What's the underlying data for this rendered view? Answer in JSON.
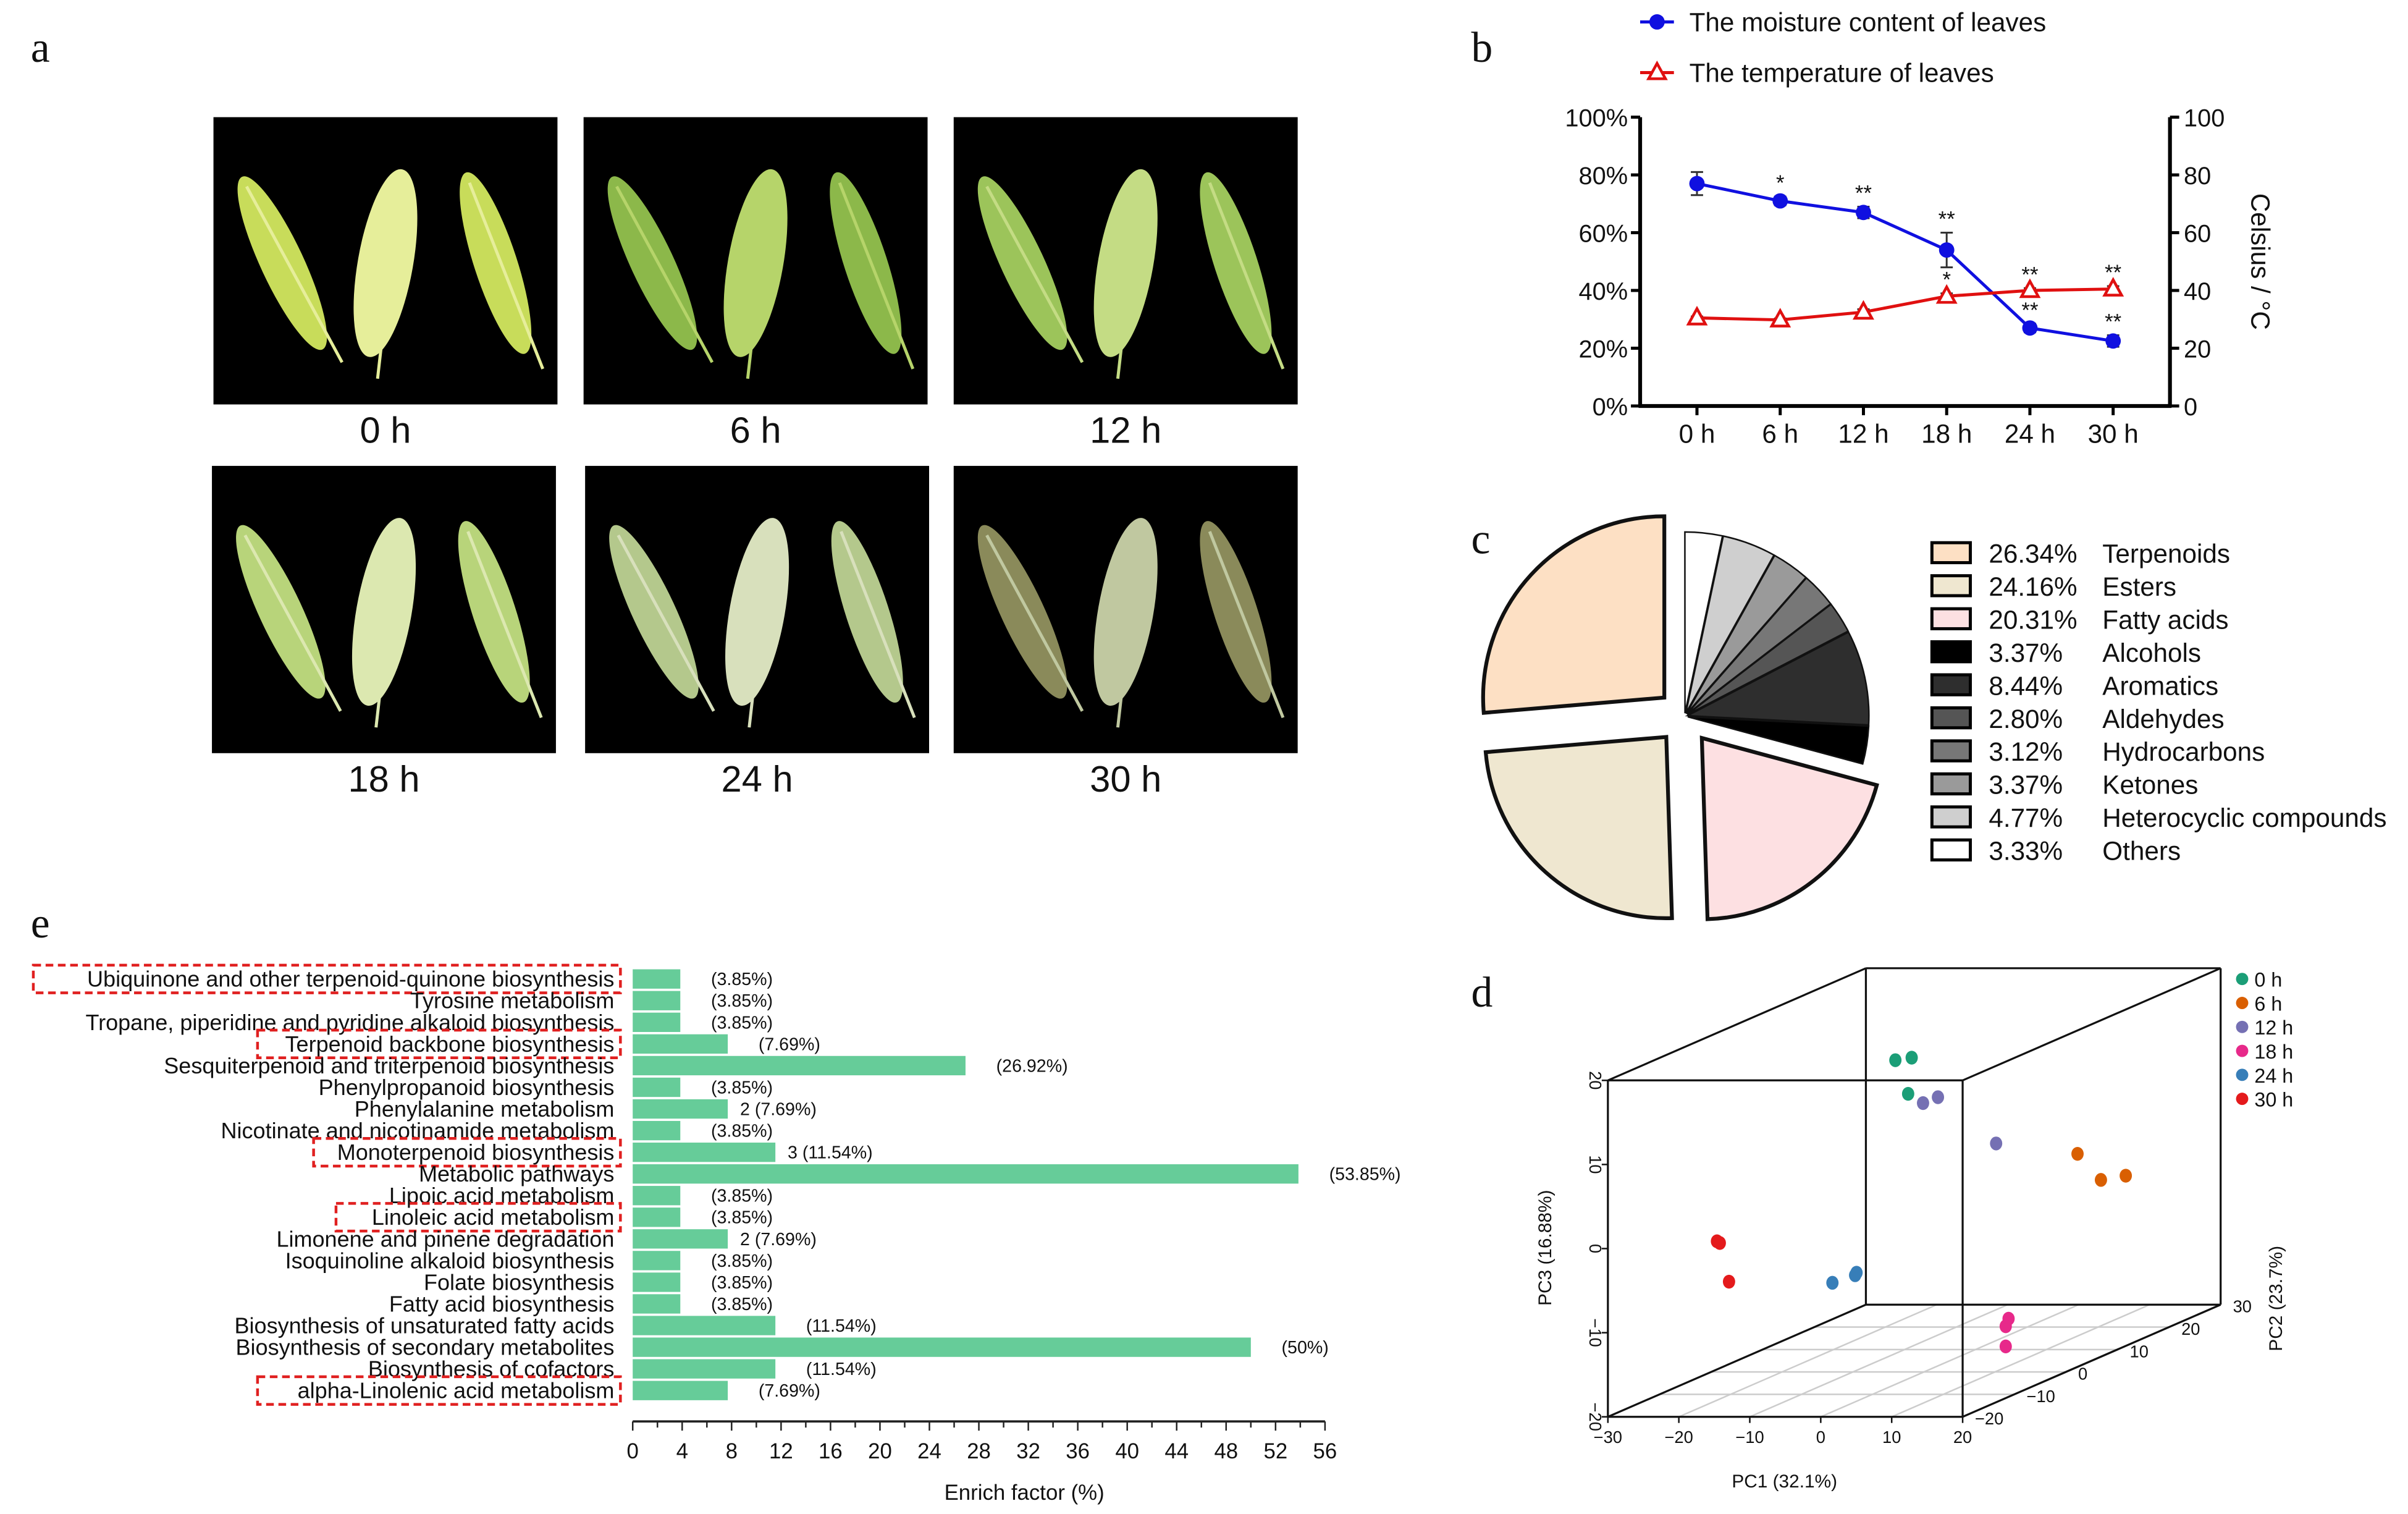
{
  "panel_labels": {
    "a": "a",
    "b": "b",
    "c": "c",
    "d": "d",
    "e": "e"
  },
  "panel_a": {
    "photos": [
      {
        "label": "0 h"
      },
      {
        "label": "6 h"
      },
      {
        "label": "12 h"
      },
      {
        "label": "18 h"
      },
      {
        "label": "24 h"
      },
      {
        "label": "30 h"
      }
    ]
  },
  "chart_data": [
    {
      "type": "line",
      "panel": "b",
      "categories": [
        "0 h",
        "6 h",
        "12 h",
        "18 h",
        "24 h",
        "30 h"
      ],
      "left_axis": {
        "ticks": [
          "0%",
          "20%",
          "40%",
          "60%",
          "80%",
          "100%"
        ],
        "ylim": [
          0,
          100
        ]
      },
      "right_axis": {
        "label": "Celsius / °C",
        "ticks": [
          "0",
          "20",
          "40",
          "60",
          "80",
          "100"
        ],
        "ylim": [
          0,
          100
        ]
      },
      "legend_placement": "top",
      "series": [
        {
          "name": "The moisture content of leaves",
          "axis": "left",
          "color": "#1010e0",
          "marker": "circle",
          "values": [
            77,
            71,
            67,
            54,
            27,
            22.5
          ],
          "error": [
            4,
            1.5,
            2,
            6,
            1.5,
            2
          ],
          "significance": [
            "",
            "*",
            "**",
            "**",
            "**",
            "**"
          ]
        },
        {
          "name": "The temperature of leaves",
          "axis": "right",
          "color": "#e01010",
          "marker": "triangle-open",
          "values": [
            30.5,
            29.8,
            32.5,
            38,
            40,
            40.5
          ],
          "error": [
            0.5,
            0.5,
            1,
            1,
            0.8,
            1
          ],
          "significance": [
            "",
            "",
            "",
            "*",
            "**",
            "**"
          ]
        }
      ]
    },
    {
      "type": "pie",
      "panel": "c",
      "legend_placement": "right",
      "slices": [
        {
          "percent_label": "26.34%",
          "name": "Terpenoids",
          "value": 26.34,
          "color": "#fde0c4",
          "exploded": true
        },
        {
          "percent_label": "24.16%",
          "name": "Esters",
          "value": 24.16,
          "color": "#efe7d0",
          "exploded": true
        },
        {
          "percent_label": "20.31%",
          "name": "Fatty acids",
          "value": 20.31,
          "color": "#fde0e2",
          "exploded": true
        },
        {
          "percent_label": "3.37%",
          "name": "Alcohols",
          "value": 3.37,
          "color": "#000000"
        },
        {
          "percent_label": "8.44%",
          "name": "Aromatics",
          "value": 8.44,
          "color": "#2e2e2e"
        },
        {
          "percent_label": "2.80%",
          "name": "Aldehydes",
          "value": 2.8,
          "color": "#555555"
        },
        {
          "percent_label": "3.12%",
          "name": "Hydrocarbons",
          "value": 3.12,
          "color": "#777777"
        },
        {
          "percent_label": "3.37%",
          "name": "Ketones",
          "value": 3.37,
          "color": "#9a9a9a"
        },
        {
          "percent_label": "4.77%",
          "name": "Heterocyclic compounds",
          "value": 4.77,
          "color": "#cfcfcf"
        },
        {
          "percent_label": "3.33%",
          "name": "Others",
          "value": 3.33,
          "color": "#ffffff"
        }
      ]
    },
    {
      "type": "scatter3d",
      "panel": "d",
      "xlabel": "PC1 (32.1%)",
      "ylabel": "PC2 (23.7%)",
      "zlabel": "PC3 (16.88%)",
      "xlim": [
        -30,
        20
      ],
      "ylim": [
        -20,
        30
      ],
      "zlim": [
        -20,
        20
      ],
      "x_ticks": [
        "−30",
        "−20",
        "−10",
        "0",
        "10",
        "20"
      ],
      "y_ticks": [
        "−20",
        "−10",
        "0",
        "10",
        "20",
        "30"
      ],
      "z_ticks": [
        "−20",
        "−10",
        "0",
        "10",
        "20"
      ],
      "legend_placement": "top-right",
      "groups": [
        {
          "name": "0 h",
          "color": "#1b9e77",
          "points": [
            [
              -11.3,
              10,
              14.4
            ],
            [
              -9.0,
              10,
              14.7
            ],
            [
              -9.5,
              10,
              10.4
            ]
          ]
        },
        {
          "name": "6 h",
          "color": "#d95f02",
          "points": [
            [
              7.1,
              20,
              0.6
            ],
            [
              10.4,
              20,
              -2.5
            ],
            [
              13.9,
              20,
              -2.0
            ]
          ]
        },
        {
          "name": "12 h",
          "color": "#7570b3",
          "points": [
            [
              -7.4,
              10,
              9.3
            ],
            [
              -5.3,
              10,
              10.0
            ],
            [
              2.9,
              10,
              4.5
            ]
          ]
        },
        {
          "name": "18 h",
          "color": "#e7298a",
          "points": [
            [
              19.2,
              -10,
              -11.0
            ],
            [
              18.8,
              -10,
              -11.9
            ],
            [
              18.8,
              -10,
              -14.3
            ]
          ]
        },
        {
          "name": "24 h",
          "color": "#377eb8",
          "points": [
            [
              -12.9,
              0,
              -9.4
            ],
            [
              -9.7,
              0,
              -8.5
            ],
            [
              -9.5,
              0,
              -8.2
            ]
          ]
        },
        {
          "name": "30 h",
          "color": "#e41a1c",
          "points": [
            [
              -21.9,
              -10,
              -1.8
            ],
            [
              -21.5,
              -10,
              -2.0
            ],
            [
              -20.2,
              -10,
              -6.6
            ]
          ]
        }
      ]
    },
    {
      "type": "bar",
      "panel": "e",
      "orientation": "horizontal",
      "xlabel": "Enrich factor (%)",
      "xlim": [
        0,
        56
      ],
      "x_ticks": [
        "0",
        "4",
        "8",
        "12",
        "16",
        "20",
        "24",
        "28",
        "32",
        "36",
        "40",
        "44",
        "48",
        "52",
        "56"
      ],
      "bar_color": "#66cc99",
      "highlight_color": "#e02020",
      "categories": [
        "Ubiquinone and other terpenoid-quinone biosynthesis",
        "Tyrosine metabolism",
        "Tropane, piperidine and pyridine alkaloid biosynthesis",
        "Terpenoid backbone biosynthesis",
        "Sesquiterpenoid and triterpenoid biosynthesis",
        "Phenylpropanoid biosynthesis",
        "Phenylalanine metabolism",
        "Nicotinate and nicotinamide metabolism",
        "Monoterpenoid biosynthesis",
        "Metabolic pathways",
        "Lipoic acid metabolism",
        "Linoleic acid metabolism",
        "Limonene and pinene degradation",
        "Isoquinoline alkaloid biosynthesis",
        "Folate biosynthesis",
        "Fatty acid biosynthesis",
        "Biosynthesis of unsaturated fatty acids",
        "Biosynthesis of secondary metabolites",
        "Biosynthesis of cofactors",
        "alpha-Linolenic acid metabolism"
      ],
      "values": [
        3.85,
        3.85,
        3.85,
        7.69,
        26.92,
        3.85,
        7.69,
        3.85,
        11.54,
        53.85,
        3.85,
        3.85,
        7.69,
        3.85,
        3.85,
        3.85,
        11.54,
        50,
        11.54,
        7.69
      ],
      "data_labels": [
        "(3.85%)",
        "(3.85%)",
        "(3.85%)",
        "(7.69%)",
        "(26.92%)",
        "(3.85%)",
        "2 (7.69%)",
        "(3.85%)",
        "3 (11.54%)",
        "(53.85%)",
        "(3.85%)",
        "(3.85%)",
        "2 (7.69%)",
        "(3.85%)",
        "(3.85%)",
        "(3.85%)",
        "(11.54%)",
        "(50%)",
        "(11.54%)",
        "(7.69%)"
      ],
      "highlighted": [
        true,
        false,
        false,
        true,
        false,
        false,
        false,
        false,
        true,
        false,
        false,
        true,
        false,
        false,
        false,
        false,
        false,
        false,
        false,
        true
      ]
    }
  ]
}
